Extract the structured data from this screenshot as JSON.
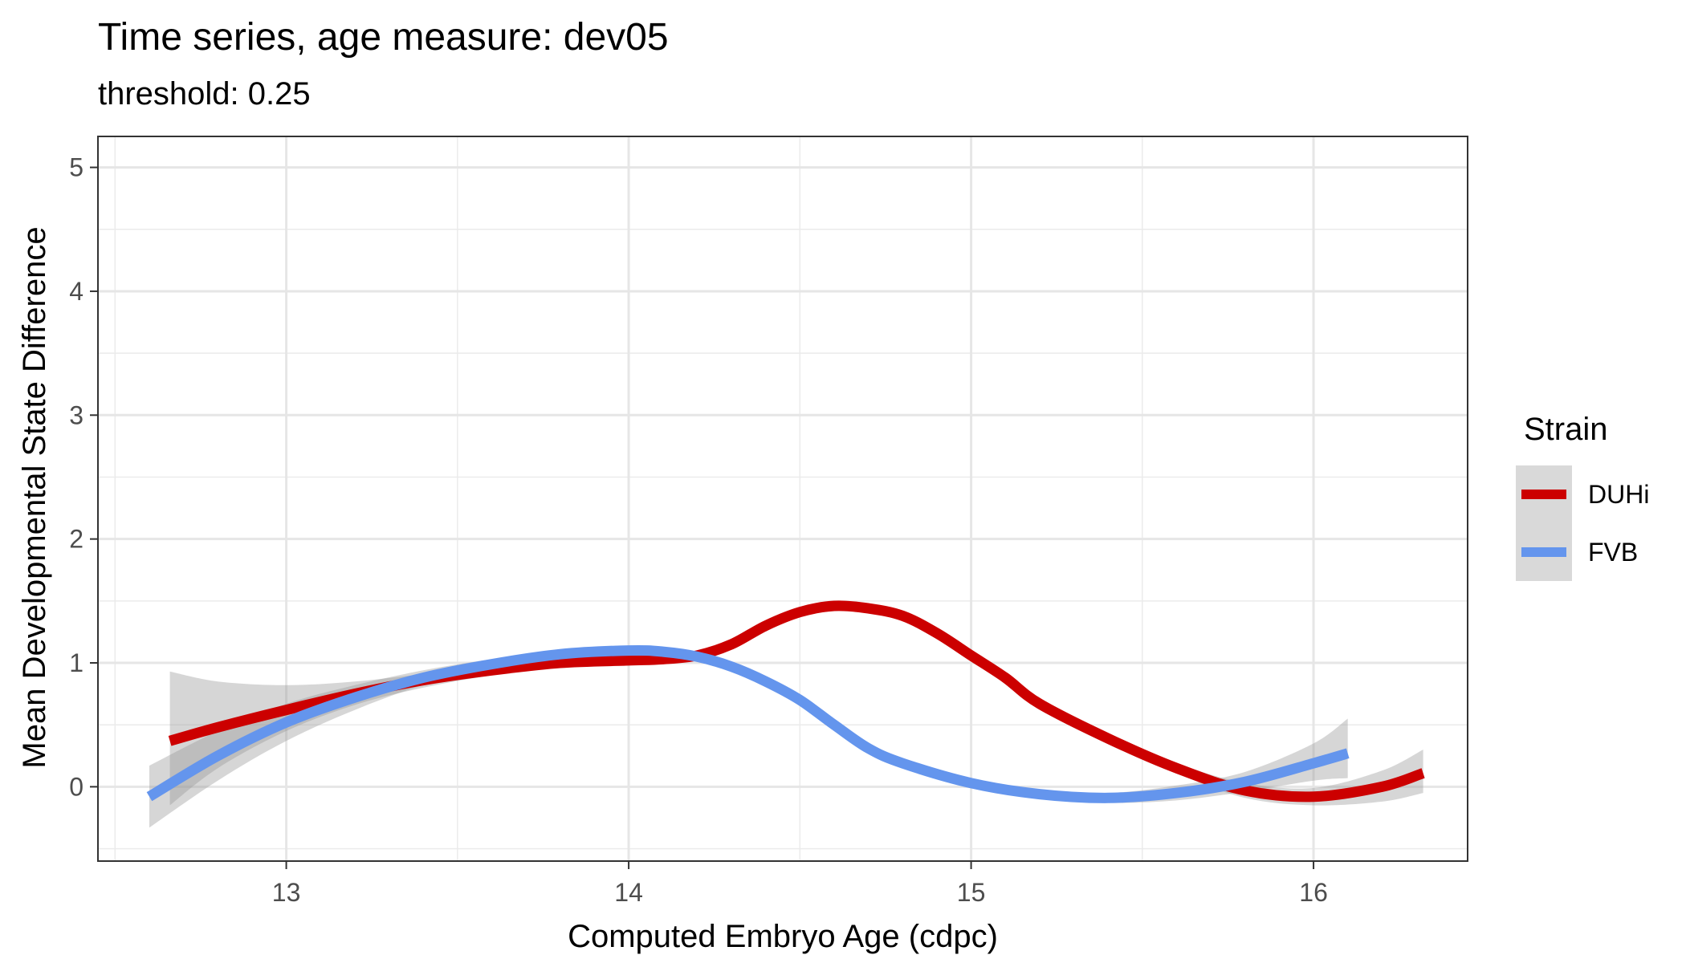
{
  "chart_data": {
    "type": "line",
    "title": "Time series, age measure: dev05",
    "subtitle": "threshold: 0.25",
    "xlabel": "Computed Embryo Age (cdpc)",
    "ylabel": "Mean Developmental State Difference",
    "xlim": [
      12.45,
      16.45
    ],
    "ylim": [
      -0.6,
      5.25
    ],
    "x_ticks": [
      13,
      14,
      15,
      16
    ],
    "x_tick_labels": [
      "13",
      "14",
      "15",
      "16"
    ],
    "y_ticks": [
      0,
      1,
      2,
      3,
      4,
      5
    ],
    "y_tick_labels": [
      "0",
      "1",
      "2",
      "3",
      "4",
      "5"
    ],
    "grid": true,
    "legend": {
      "title": "Strain",
      "position": "right"
    },
    "series": [
      {
        "name": "DUHi",
        "color": "#cc0000",
        "x": [
          12.66,
          12.8,
          13.0,
          13.2,
          13.4,
          13.6,
          13.8,
          14.0,
          14.1,
          14.2,
          14.3,
          14.4,
          14.5,
          14.6,
          14.7,
          14.8,
          14.9,
          15.0,
          15.1,
          15.2,
          15.4,
          15.6,
          15.8,
          16.0,
          16.2,
          16.32
        ],
        "y": [
          0.37,
          0.48,
          0.62,
          0.75,
          0.86,
          0.94,
          1.0,
          1.02,
          1.03,
          1.06,
          1.15,
          1.3,
          1.41,
          1.46,
          1.44,
          1.38,
          1.24,
          1.06,
          0.88,
          0.67,
          0.39,
          0.15,
          -0.03,
          -0.08,
          0.0,
          0.11
        ],
        "ribbon_lower": [
          -0.15,
          0.15,
          0.45,
          0.66,
          0.8,
          0.9,
          0.97,
          1.0,
          1.0,
          1.03,
          1.12,
          1.27,
          1.38,
          1.43,
          1.41,
          1.35,
          1.21,
          1.03,
          0.85,
          0.64,
          0.36,
          0.11,
          -0.09,
          -0.15,
          -0.12,
          -0.05
        ],
        "ribbon_upper": [
          0.93,
          0.85,
          0.82,
          0.85,
          0.91,
          0.97,
          1.03,
          1.05,
          1.06,
          1.09,
          1.18,
          1.33,
          1.44,
          1.49,
          1.47,
          1.41,
          1.27,
          1.09,
          0.91,
          0.7,
          0.42,
          0.19,
          0.03,
          -0.01,
          0.13,
          0.3
        ]
      },
      {
        "name": "FVB",
        "color": "#6495ed",
        "x": [
          12.6,
          12.8,
          13.0,
          13.2,
          13.4,
          13.6,
          13.8,
          14.0,
          14.1,
          14.2,
          14.3,
          14.4,
          14.5,
          14.6,
          14.7,
          14.8,
          15.0,
          15.2,
          15.4,
          15.6,
          15.8,
          16.0,
          16.1
        ],
        "y": [
          -0.08,
          0.25,
          0.52,
          0.72,
          0.88,
          0.99,
          1.07,
          1.1,
          1.09,
          1.05,
          0.97,
          0.85,
          0.7,
          0.5,
          0.31,
          0.19,
          0.03,
          -0.06,
          -0.09,
          -0.05,
          0.04,
          0.19,
          0.27
        ],
        "ribbon_lower": [
          -0.33,
          0.05,
          0.37,
          0.62,
          0.82,
          0.95,
          1.04,
          1.07,
          1.06,
          1.02,
          0.94,
          0.82,
          0.67,
          0.47,
          0.28,
          0.16,
          0.0,
          -0.09,
          -0.13,
          -0.11,
          -0.04,
          0.05,
          0.07
        ],
        "ribbon_upper": [
          0.17,
          0.45,
          0.67,
          0.82,
          0.94,
          1.03,
          1.1,
          1.13,
          1.12,
          1.08,
          1.0,
          0.88,
          0.73,
          0.53,
          0.34,
          0.22,
          0.06,
          -0.03,
          -0.05,
          0.01,
          0.12,
          0.35,
          0.55
        ]
      }
    ]
  }
}
